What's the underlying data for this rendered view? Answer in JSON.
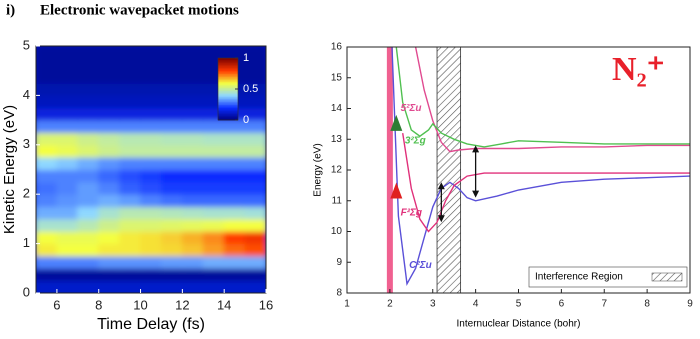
{
  "header": {
    "label": "i)",
    "title": "Electronic wavepacket motions"
  },
  "chart_data": [
    {
      "type": "heatmap",
      "xlabel": "Time Delay (fs)",
      "ylabel": "Kinetic Energy (eV)",
      "xlim": [
        5,
        16
      ],
      "xticks": [
        6,
        8,
        10,
        12,
        14,
        16
      ],
      "ylim": [
        0,
        5
      ],
      "yticks": [
        0,
        1,
        2,
        3,
        4,
        5
      ],
      "xbins": [
        5,
        6,
        7,
        8,
        9,
        10,
        11,
        12,
        13,
        14,
        15,
        16
      ],
      "ybins": [
        0,
        0.25,
        0.5,
        0.75,
        1,
        1.25,
        1.5,
        1.75,
        2,
        2.25,
        2.5,
        2.75,
        3,
        3.25,
        3.5,
        3.75,
        4,
        4.25,
        4.5,
        4.75,
        5
      ],
      "z": [
        [
          0.12,
          0.12,
          0.12,
          0.12,
          0.12,
          0.12,
          0.12,
          0.12,
          0.12,
          0.12,
          0.12
        ],
        [
          0.05,
          0.05,
          0.05,
          0.05,
          0.05,
          0.05,
          0.05,
          0.05,
          0.05,
          0.05,
          0.05
        ],
        [
          0.3,
          0.3,
          0.3,
          0.32,
          0.32,
          0.32,
          0.33,
          0.33,
          0.35,
          0.35,
          0.35
        ],
        [
          0.62,
          0.6,
          0.6,
          0.62,
          0.62,
          0.63,
          0.64,
          0.66,
          0.7,
          0.75,
          0.78
        ],
        [
          0.6,
          0.58,
          0.58,
          0.6,
          0.62,
          0.63,
          0.65,
          0.68,
          0.72,
          0.8,
          0.82
        ],
        [
          0.45,
          0.45,
          0.48,
          0.52,
          0.55,
          0.55,
          0.56,
          0.57,
          0.58,
          0.6,
          0.6
        ],
        [
          0.35,
          0.35,
          0.4,
          0.45,
          0.48,
          0.48,
          0.47,
          0.46,
          0.45,
          0.45,
          0.44
        ],
        [
          0.3,
          0.32,
          0.33,
          0.35,
          0.33,
          0.3,
          0.28,
          0.27,
          0.27,
          0.27,
          0.27
        ],
        [
          0.28,
          0.3,
          0.33,
          0.3,
          0.26,
          0.24,
          0.22,
          0.22,
          0.22,
          0.22,
          0.22
        ],
        [
          0.3,
          0.3,
          0.3,
          0.27,
          0.24,
          0.22,
          0.2,
          0.2,
          0.2,
          0.2,
          0.2
        ],
        [
          0.4,
          0.38,
          0.35,
          0.32,
          0.3,
          0.3,
          0.3,
          0.3,
          0.3,
          0.3,
          0.3
        ],
        [
          0.6,
          0.58,
          0.55,
          0.52,
          0.5,
          0.5,
          0.5,
          0.5,
          0.5,
          0.5,
          0.5
        ],
        [
          0.55,
          0.55,
          0.52,
          0.5,
          0.48,
          0.48,
          0.47,
          0.47,
          0.46,
          0.46,
          0.46
        ],
        [
          0.3,
          0.3,
          0.3,
          0.3,
          0.3,
          0.3,
          0.3,
          0.3,
          0.3,
          0.3,
          0.3
        ],
        [
          0.15,
          0.15,
          0.15,
          0.15,
          0.15,
          0.15,
          0.15,
          0.15,
          0.15,
          0.15,
          0.15
        ],
        [
          0.1,
          0.1,
          0.1,
          0.1,
          0.1,
          0.1,
          0.1,
          0.1,
          0.1,
          0.1,
          0.1
        ],
        [
          0.08,
          0.08,
          0.08,
          0.08,
          0.08,
          0.08,
          0.08,
          0.08,
          0.08,
          0.08,
          0.08
        ],
        [
          0.05,
          0.05,
          0.05,
          0.05,
          0.05,
          0.05,
          0.05,
          0.05,
          0.05,
          0.05,
          0.05
        ],
        [
          0.05,
          0.05,
          0.05,
          0.05,
          0.05,
          0.05,
          0.05,
          0.05,
          0.05,
          0.05,
          0.05
        ],
        [
          0.05,
          0.05,
          0.05,
          0.05,
          0.05,
          0.05,
          0.05,
          0.05,
          0.05,
          0.05,
          0.05
        ]
      ],
      "zlim": [
        0,
        1
      ],
      "zticks": [
        0,
        0.5,
        1
      ],
      "colormap": [
        "#00007a",
        "#0a2cff",
        "#8fd8ff",
        "#f4ff40",
        "#ff3a00",
        "#7a0000"
      ]
    },
    {
      "type": "line",
      "title": "N₂⁺",
      "xlabel": "Internuclear Distance (bohr)",
      "ylabel": "Energy (eV)",
      "xlim": [
        1,
        9
      ],
      "xticks": [
        1,
        2,
        3,
        4,
        5,
        6,
        7,
        8,
        9
      ],
      "ylim": [
        8,
        16
      ],
      "yticks": [
        8,
        9,
        10,
        11,
        12,
        13,
        14,
        15,
        16
      ],
      "highlight_x": [
        1.93,
        2.07
      ],
      "highlight_color": "#f06090",
      "region_x": [
        3.1,
        3.65
      ],
      "region_label": "Interference Region",
      "series": [
        {
          "name": "C²Σu",
          "color": "#5a50d8",
          "x": [
            2.05,
            2.2,
            2.4,
            2.6,
            2.8,
            3.0,
            3.2,
            3.4,
            3.6,
            3.8,
            4,
            4.5,
            5,
            6,
            7,
            8,
            9
          ],
          "values": [
            16,
            10.5,
            8.3,
            8.8,
            9.8,
            10.8,
            11.4,
            11.6,
            11.4,
            11.1,
            11.0,
            11.15,
            11.35,
            11.6,
            11.7,
            11.75,
            11.8
          ]
        },
        {
          "name": "F²Σg",
          "color": "#e0307a",
          "x": [
            2.3,
            2.5,
            2.7,
            2.9,
            3.1,
            3.3,
            3.5,
            3.8,
            4.2,
            5,
            6,
            7,
            8,
            9
          ],
          "values": [
            13.2,
            11.4,
            10.4,
            10.0,
            10.3,
            11.0,
            11.5,
            11.8,
            11.9,
            11.9,
            11.9,
            11.9,
            11.9,
            11.9
          ]
        },
        {
          "name": "5²Σu",
          "color": "#e04a90",
          "x": [
            2.6,
            2.8,
            3.0,
            3.2,
            3.4,
            3.6,
            4,
            5,
            6,
            7,
            8,
            9
          ],
          "values": [
            16,
            14.6,
            13.6,
            12.9,
            12.6,
            12.65,
            12.7,
            12.7,
            12.75,
            12.75,
            12.8,
            12.8
          ]
        },
        {
          "name": "3²Σg",
          "color": "#50c050",
          "x": [
            2.15,
            2.3,
            2.5,
            2.7,
            2.9,
            3.0,
            3.2,
            3.5,
            3.8,
            4.2,
            4.6,
            5,
            6,
            7,
            8,
            9
          ],
          "values": [
            16,
            14.2,
            13.3,
            13.1,
            13.3,
            13.5,
            13.2,
            13.0,
            12.85,
            12.75,
            12.85,
            12.95,
            12.9,
            12.85,
            12.85,
            12.85
          ]
        }
      ],
      "markers": [
        {
          "x": 2.15,
          "y": 13.5,
          "color": "#2e7d32"
        },
        {
          "x": 2.15,
          "y": 11.3,
          "color": "#e02020"
        }
      ],
      "arrows": [
        {
          "x": 3.2,
          "y": [
            10.3,
            11.6
          ]
        },
        {
          "x": 4.0,
          "y": [
            11.1,
            12.8
          ]
        }
      ]
    }
  ]
}
